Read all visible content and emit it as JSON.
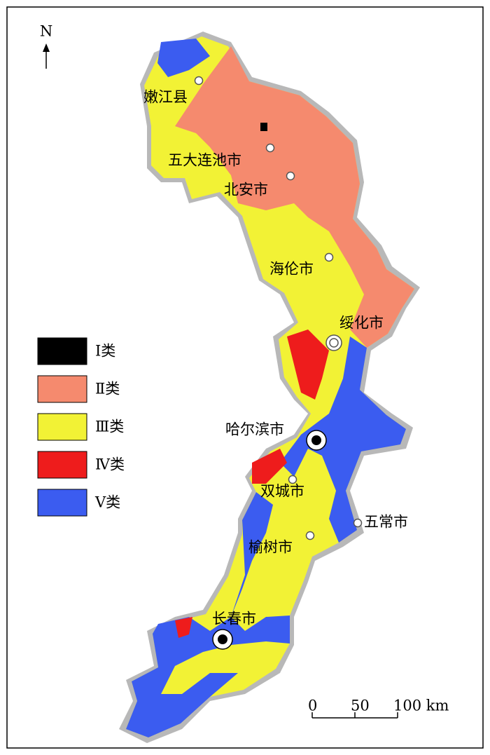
{
  "north": "N",
  "cities": [
    "嫩江县",
    "五大连池市",
    "北安市",
    "海伦市",
    "绥化市",
    "哈尔滨市",
    "双城市",
    "五常市",
    "榆树市",
    "长春市"
  ],
  "legend": [
    {
      "label": "Ⅰ类",
      "color": "#000000"
    },
    {
      "label": "Ⅱ类",
      "color": "#f58a6e"
    },
    {
      "label": "Ⅲ类",
      "color": "#f2f235"
    },
    {
      "label": "Ⅳ类",
      "color": "#ee1c1c"
    },
    {
      "label": "Ⅴ类",
      "color": "#3b5cf0"
    }
  ],
  "scale_bar": {
    "ticks": [
      0,
      50,
      {
        "value": 100,
        "label": "100 km"
      }
    ]
  }
}
